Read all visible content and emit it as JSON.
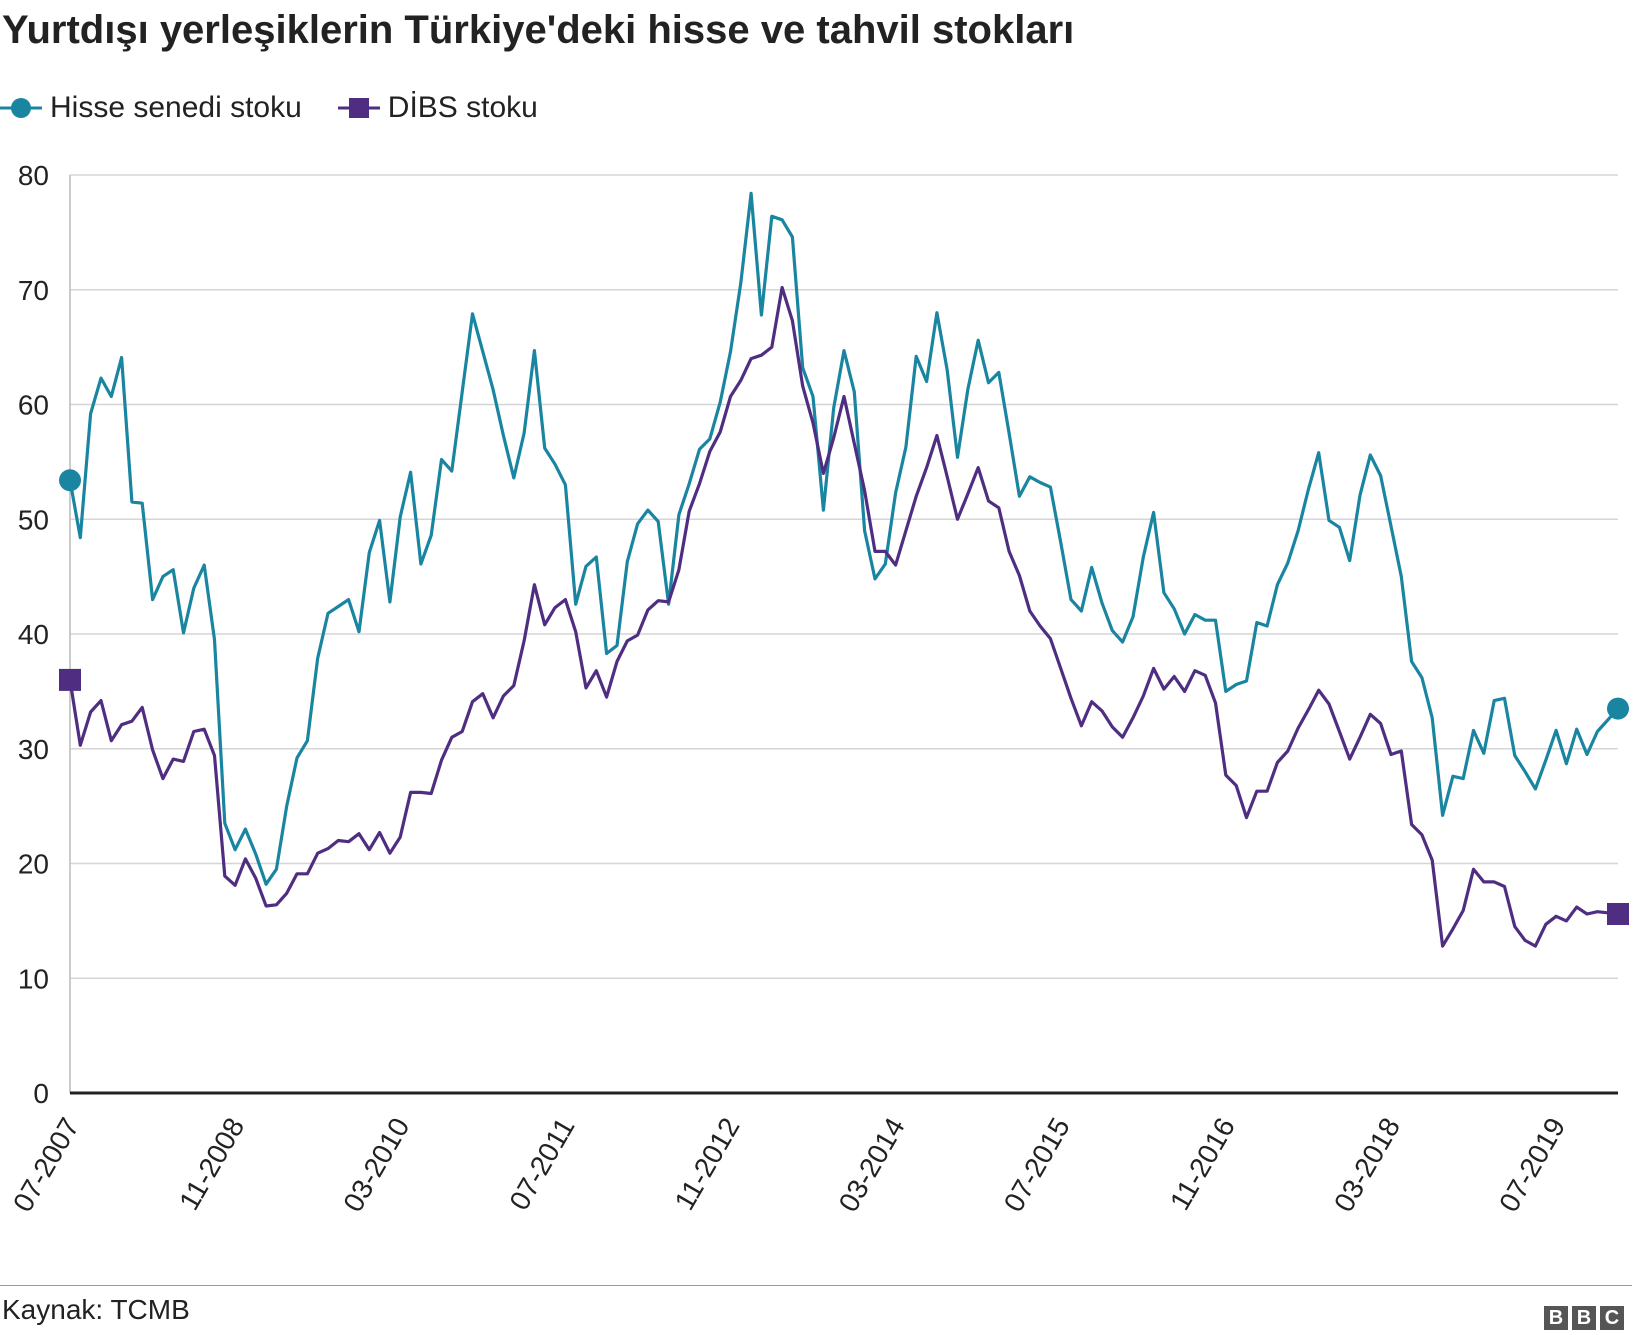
{
  "chart_data": {
    "type": "line",
    "title": "Yurtdışı yerleşiklerin Türkiye'deki hisse ve tahvil stokları",
    "xlabel": "",
    "ylabel": "",
    "ylim": [
      0,
      80
    ],
    "yticks": [
      "0",
      "10",
      "20",
      "30",
      "40",
      "50",
      "60",
      "70",
      "80"
    ],
    "xtick_labels": [
      "07-2007",
      "11-2008",
      "03-2010",
      "07-2011",
      "11-2012",
      "03-2014",
      "07-2015",
      "11-2016",
      "03-2018",
      "07-2019"
    ],
    "x_start": "07-2007",
    "x_end": "12-2019",
    "grid": true,
    "legend_position": "top-left",
    "series": [
      {
        "name": "Hisse senedi stoku",
        "color": "#1a85a1",
        "marker": "circle",
        "values": [
          53.4,
          48.4,
          59.2,
          62.3,
          60.7,
          64.1,
          51.5,
          51.4,
          43.0,
          45.0,
          45.6,
          40.1,
          44.0,
          46.0,
          39.5,
          23.5,
          21.2,
          23.0,
          20.8,
          18.2,
          19.5,
          25.0,
          29.2,
          30.7,
          37.9,
          41.8,
          42.4,
          43.0,
          40.2,
          47.1,
          49.9,
          42.8,
          50.2,
          54.1,
          46.1,
          48.6,
          55.2,
          54.2,
          61.1,
          67.9,
          64.6,
          61.3,
          57.3,
          53.6,
          57.5,
          64.7,
          56.2,
          54.8,
          53.0,
          42.6,
          45.9,
          46.7,
          38.3,
          39.0,
          46.3,
          49.6,
          50.8,
          49.8,
          42.6,
          50.4,
          53.1,
          56.1,
          57.0,
          60.2,
          64.6,
          70.6,
          78.4,
          67.8,
          76.4,
          76.1,
          74.6,
          63.2,
          60.7,
          50.8,
          59.7,
          64.7,
          61.1,
          49.0,
          44.8,
          46.1,
          52.3,
          56.3,
          64.2,
          62.0,
          68.0,
          63.0,
          55.4,
          61.3,
          65.6,
          61.9,
          62.8,
          57.5,
          52.0,
          53.7,
          53.2,
          52.8,
          48.0,
          43.0,
          42.0,
          45.8,
          42.7,
          40.3,
          39.3,
          41.5,
          46.7,
          50.6,
          43.6,
          42.2,
          40.0,
          41.7,
          41.2,
          41.2,
          35.0,
          35.6,
          35.9,
          41.0,
          40.7,
          44.3,
          46.2,
          49.0,
          52.6,
          55.8,
          49.9,
          49.3,
          46.4,
          52.1,
          55.6,
          53.8,
          49.4,
          45.0,
          37.6,
          36.2,
          32.7,
          24.2,
          27.6,
          27.4,
          31.6,
          29.6,
          34.2,
          34.4,
          29.4,
          28.0,
          26.5,
          29.0,
          31.6,
          28.7,
          31.7,
          29.5,
          31.5,
          32.5,
          33.5
        ]
      },
      {
        "name": "DİBS stoku",
        "color": "#4f2e82",
        "marker": "square",
        "values": [
          36.0,
          30.3,
          33.2,
          34.2,
          30.7,
          32.1,
          32.4,
          33.6,
          29.9,
          27.4,
          29.1,
          28.9,
          31.5,
          31.7,
          29.4,
          18.9,
          18.1,
          20.4,
          18.7,
          16.3,
          16.4,
          17.4,
          19.1,
          19.1,
          20.9,
          21.3,
          22.0,
          21.9,
          22.6,
          21.2,
          22.7,
          20.9,
          22.3,
          26.2,
          26.2,
          26.1,
          29.0,
          31.0,
          31.5,
          34.1,
          34.8,
          32.7,
          34.6,
          35.5,
          39.4,
          44.3,
          40.8,
          42.3,
          43.0,
          40.2,
          35.3,
          36.8,
          34.5,
          37.6,
          39.4,
          39.9,
          42.1,
          42.9,
          42.8,
          45.6,
          50.7,
          53.1,
          55.9,
          57.6,
          60.7,
          62.1,
          64.0,
          64.3,
          65.0,
          70.2,
          67.3,
          61.6,
          58.4,
          54.0,
          57.1,
          60.7,
          56.6,
          52.5,
          47.2,
          47.2,
          46.0,
          49.0,
          52.0,
          54.5,
          57.3,
          53.7,
          50.0,
          52.2,
          54.5,
          51.6,
          51.0,
          47.2,
          45.1,
          42.0,
          40.7,
          39.6,
          37.0,
          34.4,
          32.0,
          34.1,
          33.3,
          31.9,
          31.0,
          32.7,
          34.6,
          37.0,
          35.2,
          36.3,
          35.0,
          36.8,
          36.4,
          34.0,
          27.7,
          26.8,
          24.0,
          26.3,
          26.3,
          28.8,
          29.8,
          31.8,
          33.4,
          35.1,
          33.9,
          31.5,
          29.1,
          31.0,
          33.0,
          32.2,
          29.5,
          29.8,
          23.4,
          22.5,
          20.3,
          12.8,
          14.3,
          15.9,
          19.5,
          18.4,
          18.4,
          18.0,
          14.5,
          13.3,
          12.8,
          14.7,
          15.4,
          15.0,
          16.2,
          15.6,
          15.8,
          15.7,
          15.6
        ]
      }
    ]
  },
  "source": "Kaynak: TCMB",
  "logo": {
    "letters": [
      "B",
      "B",
      "C"
    ]
  }
}
